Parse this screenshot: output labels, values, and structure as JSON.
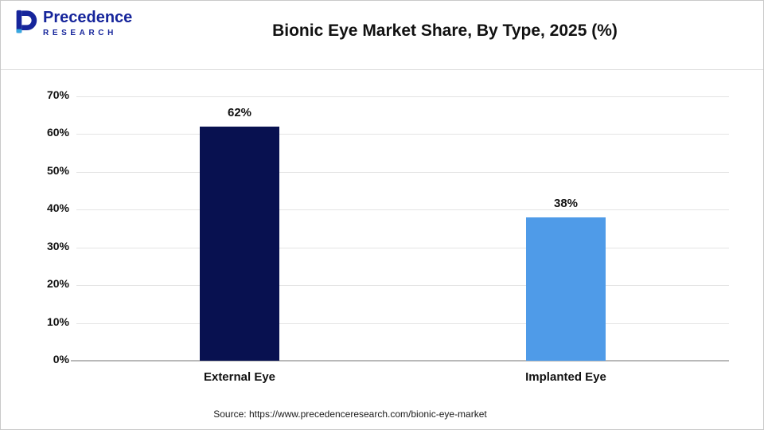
{
  "header": {
    "title": "Bionic Eye Market Share, By Type, 2025 (%)",
    "logo": {
      "line1": "Precedence",
      "line2": "RESEARCH"
    }
  },
  "chart_data": {
    "type": "bar",
    "title": "Bionic Eye Market Share, By Type, 2025 (%)",
    "categories": [
      "External Eye",
      "Implanted Eye"
    ],
    "values": [
      62,
      38
    ],
    "value_labels": [
      "62%",
      "38%"
    ],
    "bar_colors": [
      "#081150",
      "#4f9be8"
    ],
    "xlabel": "",
    "ylabel": "",
    "ylim": [
      0,
      70
    ],
    "ytick_step": 10,
    "ytick_labels": [
      "0%",
      "10%",
      "20%",
      "30%",
      "40%",
      "50%",
      "60%",
      "70%"
    ],
    "grid": true,
    "legend": "none"
  },
  "footer": {
    "source": "Source: https://www.precedenceresearch.com/bionic-eye-market"
  }
}
